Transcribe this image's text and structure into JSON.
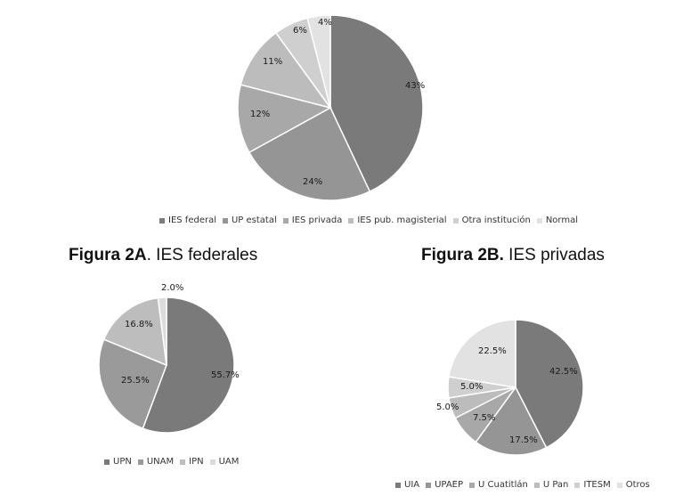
{
  "titles": {
    "fig2a_bold": "Figura 2A",
    "fig2a_rest": ". IES federales",
    "fig2b_bold": "Figura 2B.",
    "fig2b_rest": " IES privadas"
  },
  "chart_data": [
    {
      "type": "pie",
      "id": "main",
      "title": "",
      "categories": [
        "IES federal",
        "UP estatal",
        "IES privada",
        "IES pub. magisterial",
        "Otra institución",
        "Normal"
      ],
      "values": [
        43,
        24,
        12,
        11,
        6,
        4
      ],
      "labels": [
        "43%",
        "24%",
        "12%",
        "11%",
        "6%",
        "4%"
      ],
      "colors": [
        "#7a7a7a",
        "#959595",
        "#a8a8a8",
        "#bcbcbc",
        "#cfcfcf",
        "#e2e2e2"
      ],
      "legend": "bottom"
    },
    {
      "type": "pie",
      "id": "fig2a",
      "title": "Figura 2A. IES federales",
      "categories": [
        "UPN",
        "UNAM",
        "IPN",
        "UAM"
      ],
      "values": [
        55.7,
        25.5,
        16.8,
        2.0
      ],
      "labels": [
        "55.7%",
        "25.5%",
        "16.8%",
        "2.0%"
      ],
      "colors": [
        "#7a7a7a",
        "#9a9a9a",
        "#bdbdbd",
        "#dcdcdc"
      ],
      "legend": "bottom"
    },
    {
      "type": "pie",
      "id": "fig2b",
      "title": "Figura 2B. IES privadas",
      "categories": [
        "UIA",
        "UPAEP",
        "U Cuatitlán",
        "U Pan",
        "ITESM",
        "Otros"
      ],
      "values": [
        42.5,
        17.5,
        7.5,
        5.0,
        5.0,
        22.5
      ],
      "labels": [
        "42.5%",
        "17.5%",
        "7.5%",
        "5.0%",
        "5.0%",
        "22.5%"
      ],
      "colors": [
        "#7a7a7a",
        "#959595",
        "#a8a8a8",
        "#bcbcbc",
        "#cfcfcf",
        "#e2e2e2"
      ],
      "legend": "bottom"
    }
  ]
}
